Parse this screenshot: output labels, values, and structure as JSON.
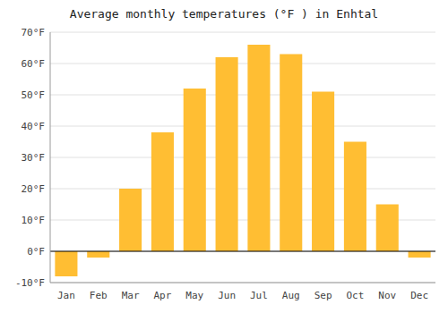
{
  "chart_data": {
    "type": "bar",
    "title": "Average monthly temperatures (°F ) in Enhtal",
    "categories": [
      "Jan",
      "Feb",
      "Mar",
      "Apr",
      "May",
      "Jun",
      "Jul",
      "Aug",
      "Sep",
      "Oct",
      "Nov",
      "Dec"
    ],
    "values": [
      -8,
      -2,
      20,
      38,
      52,
      62,
      66,
      63,
      51,
      35,
      15,
      -2
    ],
    "color": "#FFBE33",
    "ylim": [
      -10,
      70
    ],
    "yticks": [
      {
        "value": -10,
        "label": "-10°F"
      },
      {
        "value": 0,
        "label": "0°F"
      },
      {
        "value": 10,
        "label": "10°F"
      },
      {
        "value": 20,
        "label": "20°F"
      },
      {
        "value": 30,
        "label": "30°F"
      },
      {
        "value": 40,
        "label": "40°F"
      },
      {
        "value": 50,
        "label": "50°F"
      },
      {
        "value": 60,
        "label": "60°F"
      },
      {
        "value": 70,
        "label": "70°F"
      }
    ],
    "grid": true
  }
}
